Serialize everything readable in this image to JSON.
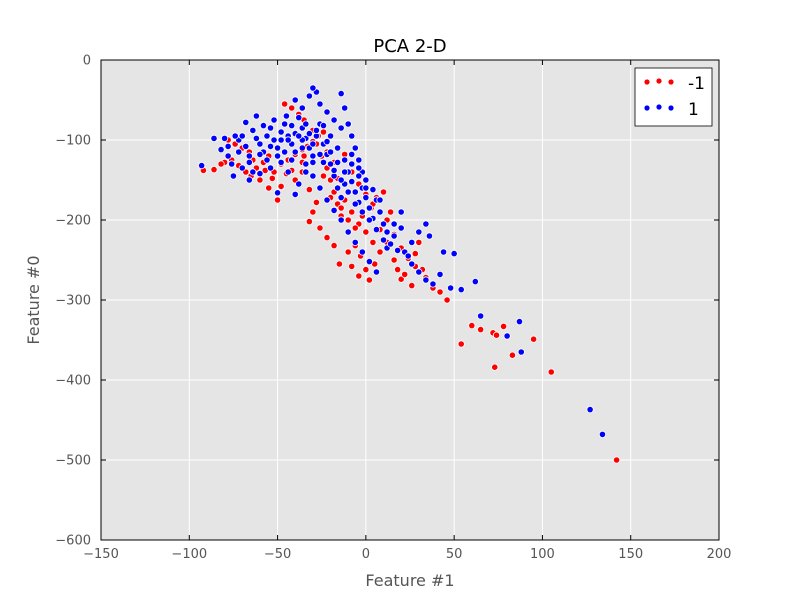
{
  "chart_data": {
    "type": "scatter",
    "title": "PCA 2-D",
    "xlabel": "Feature #1",
    "ylabel": "Feature #0",
    "xlim": [
      -150,
      200
    ],
    "ylim": [
      -600,
      0
    ],
    "xticks": [
      "−150",
      "−100",
      "−50",
      "0",
      "50",
      "100",
      "150",
      "200"
    ],
    "yticks": [
      "0",
      "−100",
      "−200",
      "−300",
      "−400",
      "−500",
      "−600"
    ],
    "xtick_values": [
      -150,
      -100,
      -50,
      0,
      50,
      100,
      150,
      200
    ],
    "ytick_values": [
      0,
      -100,
      -200,
      -300,
      -400,
      -500,
      -600
    ],
    "grid": true,
    "background": "#e5e5e5",
    "legend_position": "top-right",
    "series": [
      {
        "name": "-1",
        "color": "#ff0000",
        "points": [
          [
            -86,
            -137
          ],
          [
            -80,
            -128
          ],
          [
            -76,
            -125
          ],
          [
            -72,
            -132
          ],
          [
            -68,
            -140
          ],
          [
            -65,
            -145
          ],
          [
            -62,
            -135
          ],
          [
            -58,
            -128
          ],
          [
            -55,
            -120
          ],
          [
            -52,
            -140
          ],
          [
            -48,
            -130
          ],
          [
            -44,
            -125
          ],
          [
            -40,
            -118
          ],
          [
            -36,
            -112
          ],
          [
            -33,
            -108
          ],
          [
            -30,
            -102
          ],
          [
            -27,
            -95
          ],
          [
            -24,
            -90
          ],
          [
            -46,
            -55
          ],
          [
            -42,
            -60
          ],
          [
            -38,
            -68
          ],
          [
            -35,
            -75
          ],
          [
            -30,
            -88
          ],
          [
            -28,
            -105
          ],
          [
            -25,
            -120
          ],
          [
            -22,
            -135
          ],
          [
            -20,
            -150
          ],
          [
            -18,
            -165
          ],
          [
            -16,
            -180
          ],
          [
            -14,
            -195
          ],
          [
            -28,
            -178
          ],
          [
            -30,
            -190
          ],
          [
            -32,
            -202
          ],
          [
            -26,
            -210
          ],
          [
            -22,
            -222
          ],
          [
            -18,
            -232
          ],
          [
            -15,
            -255
          ],
          [
            -10,
            -240
          ],
          [
            -6,
            -232
          ],
          [
            -3,
            -245
          ],
          [
            0,
            -262
          ],
          [
            -4,
            -270
          ],
          [
            -8,
            -258
          ],
          [
            2,
            -275
          ],
          [
            5,
            -255
          ],
          [
            8,
            -240
          ],
          [
            12,
            -228
          ],
          [
            16,
            -250
          ],
          [
            18,
            -262
          ],
          [
            20,
            -274
          ],
          [
            -12,
            -175
          ],
          [
            -8,
            -190
          ],
          [
            -4,
            -205
          ],
          [
            0,
            -215
          ],
          [
            4,
            -228
          ],
          [
            8,
            -212
          ],
          [
            12,
            -200
          ],
          [
            16,
            -218
          ],
          [
            20,
            -235
          ],
          [
            24,
            -248
          ],
          [
            28,
            -258
          ],
          [
            32,
            -262
          ],
          [
            34,
            -272
          ],
          [
            38,
            -285
          ],
          [
            42,
            -290
          ],
          [
            46,
            -300
          ],
          [
            28,
            -242
          ],
          [
            30,
            -228
          ],
          [
            26,
            -282
          ],
          [
            22,
            -268
          ],
          [
            60,
            -332
          ],
          [
            65,
            -337
          ],
          [
            72,
            -341
          ],
          [
            74,
            -344
          ],
          [
            78,
            -333
          ],
          [
            83,
            -369
          ],
          [
            95,
            -349
          ],
          [
            54,
            -355
          ],
          [
            73,
            -384
          ],
          [
            105,
            -390
          ],
          [
            142,
            -500
          ],
          [
            -50,
            -175
          ],
          [
            -40,
            -150
          ],
          [
            -55,
            -160
          ],
          [
            -60,
            -150
          ],
          [
            -66,
            -115
          ],
          [
            -70,
            -110
          ],
          [
            -74,
            -105
          ],
          [
            -78,
            -100
          ],
          [
            -82,
            -130
          ],
          [
            -57,
            -138
          ],
          [
            -53,
            -148
          ],
          [
            -45,
            -142
          ],
          [
            -36,
            -140
          ],
          [
            -32,
            -162
          ],
          [
            -26,
            -160
          ],
          [
            -20,
            -172
          ],
          [
            -14,
            -185
          ],
          [
            -10,
            -200
          ],
          [
            -6,
            -210
          ],
          [
            -2,
            -195
          ],
          [
            3,
            -185
          ],
          [
            6,
            -172
          ],
          [
            10,
            -165
          ],
          [
            14,
            -190
          ],
          [
            -35,
            -120
          ],
          [
            -22,
            -115
          ],
          [
            -18,
            -128
          ],
          [
            -12,
            -118
          ],
          [
            -8,
            -140
          ],
          [
            -4,
            -155
          ],
          [
            0,
            -168
          ],
          [
            4,
            -180
          ],
          [
            -16,
            -148
          ],
          [
            -24,
            -145
          ],
          [
            -36,
            -128
          ],
          [
            -42,
            -138
          ],
          [
            -48,
            -158
          ],
          [
            -64,
            -125
          ],
          [
            -92,
            -138
          ]
        ]
      },
      {
        "name": "1",
        "color": "#0000ff",
        "points": [
          [
            -93,
            -132
          ],
          [
            -86,
            -98
          ],
          [
            -82,
            -112
          ],
          [
            -78,
            -120
          ],
          [
            -75,
            -145
          ],
          [
            -72,
            -100
          ],
          [
            -70,
            -95
          ],
          [
            -68,
            -108
          ],
          [
            -66,
            -120
          ],
          [
            -64,
            -88
          ],
          [
            -62,
            -98
          ],
          [
            -60,
            -105
          ],
          [
            -58,
            -115
          ],
          [
            -56,
            -95
          ],
          [
            -54,
            -85
          ],
          [
            -52,
            -100
          ],
          [
            -50,
            -110
          ],
          [
            -48,
            -90
          ],
          [
            -46,
            -80
          ],
          [
            -44,
            -95
          ],
          [
            -42,
            -105
          ],
          [
            -40,
            -115
          ],
          [
            -38,
            -72
          ],
          [
            -36,
            -85
          ],
          [
            -34,
            -98
          ],
          [
            -32,
            -110
          ],
          [
            -30,
            -120
          ],
          [
            -28,
            -95
          ],
          [
            -26,
            -80
          ],
          [
            -24,
            -105
          ],
          [
            -22,
            -118
          ],
          [
            -20,
            -130
          ],
          [
            -18,
            -145
          ],
          [
            -16,
            -160
          ],
          [
            -14,
            -172
          ],
          [
            -12,
            -155
          ],
          [
            -10,
            -140
          ],
          [
            -8,
            -152
          ],
          [
            -6,
            -165
          ],
          [
            -4,
            -178
          ],
          [
            -2,
            -160
          ],
          [
            0,
            -172
          ],
          [
            2,
            -185
          ],
          [
            4,
            -198
          ],
          [
            6,
            -175
          ],
          [
            8,
            -190
          ],
          [
            10,
            -205
          ],
          [
            12,
            -215
          ],
          [
            -40,
            -50
          ],
          [
            -36,
            -60
          ],
          [
            -32,
            -45
          ],
          [
            -28,
            -40
          ],
          [
            -30,
            -35
          ],
          [
            -26,
            -55
          ],
          [
            -22,
            -65
          ],
          [
            -18,
            -75
          ],
          [
            -14,
            -85
          ],
          [
            -12,
            -60
          ],
          [
            -14,
            -42
          ],
          [
            -10,
            -80
          ],
          [
            -8,
            -95
          ],
          [
            -6,
            -110
          ],
          [
            -4,
            -125
          ],
          [
            -2,
            -140
          ],
          [
            -66,
            -150
          ],
          [
            -60,
            -142
          ],
          [
            -54,
            -135
          ],
          [
            -48,
            -128
          ],
          [
            -44,
            -140
          ],
          [
            -38,
            -155
          ],
          [
            -34,
            -130
          ],
          [
            -30,
            -145
          ],
          [
            -26,
            -160
          ],
          [
            -22,
            -175
          ],
          [
            -18,
            -188
          ],
          [
            -14,
            -200
          ],
          [
            -10,
            -215
          ],
          [
            -6,
            -228
          ],
          [
            -2,
            -240
          ],
          [
            2,
            -252
          ],
          [
            6,
            -265
          ],
          [
            12,
            -235
          ],
          [
            16,
            -220
          ],
          [
            20,
            -210
          ],
          [
            22,
            -240
          ],
          [
            24,
            -245
          ],
          [
            26,
            -255
          ],
          [
            30,
            -265
          ],
          [
            34,
            -275
          ],
          [
            38,
            -280
          ],
          [
            42,
            -268
          ],
          [
            44,
            -240
          ],
          [
            48,
            -285
          ],
          [
            50,
            -242
          ],
          [
            54,
            -287
          ],
          [
            62,
            -277
          ],
          [
            65,
            -320
          ],
          [
            80,
            -345
          ],
          [
            87,
            -327
          ],
          [
            88,
            -365
          ],
          [
            127,
            -437
          ],
          [
            134,
            -468
          ],
          [
            -50,
            -166
          ],
          [
            -40,
            -168
          ],
          [
            -45,
            -70
          ],
          [
            -52,
            -75
          ],
          [
            -58,
            -82
          ],
          [
            -62,
            -70
          ],
          [
            -68,
            -78
          ],
          [
            -74,
            -95
          ],
          [
            -80,
            -98
          ],
          [
            -76,
            -130
          ],
          [
            -70,
            -135
          ],
          [
            -64,
            -140
          ],
          [
            -56,
            -125
          ],
          [
            -50,
            -120
          ],
          [
            -46,
            -115
          ],
          [
            -42,
            -125
          ],
          [
            -36,
            -100
          ],
          [
            -32,
            -92
          ],
          [
            -28,
            -88
          ],
          [
            -24,
            -82
          ],
          [
            -20,
            -95
          ],
          [
            -16,
            -110
          ],
          [
            -12,
            -125
          ],
          [
            -8,
            -118
          ],
          [
            -4,
            -135
          ],
          [
            0,
            -150
          ],
          [
            4,
            -162
          ],
          [
            8,
            -175
          ],
          [
            -36,
            -110
          ],
          [
            -30,
            -105
          ],
          [
            -24,
            -128
          ],
          [
            -18,
            -138
          ],
          [
            -14,
            -150
          ],
          [
            -10,
            -165
          ],
          [
            -6,
            -180
          ],
          [
            -2,
            -190
          ],
          [
            2,
            -200
          ],
          [
            6,
            -212
          ],
          [
            10,
            -225
          ],
          [
            14,
            -230
          ],
          [
            18,
            -238
          ],
          [
            26,
            -228
          ],
          [
            30,
            -215
          ],
          [
            34,
            -205
          ],
          [
            36,
            -220
          ],
          [
            20,
            -190
          ],
          [
            16,
            -205
          ],
          [
            -44,
            -100
          ],
          [
            -40,
            -92
          ],
          [
            -34,
            -80
          ],
          [
            -20,
            -115
          ],
          [
            -16,
            -128
          ],
          [
            -12,
            -140
          ],
          [
            -8,
            -130
          ],
          [
            -4,
            -145
          ],
          [
            0,
            -160
          ],
          [
            -22,
            -102
          ],
          [
            -26,
            -118
          ],
          [
            -30,
            -128
          ],
          [
            -34,
            -140
          ],
          [
            -38,
            -95
          ],
          [
            -42,
            -82
          ],
          [
            -48,
            -100
          ],
          [
            -54,
            -108
          ],
          [
            -60,
            -118
          ],
          [
            -66,
            -128
          ],
          [
            -72,
            -115
          ],
          [
            -78,
            -108
          ]
        ]
      }
    ]
  }
}
